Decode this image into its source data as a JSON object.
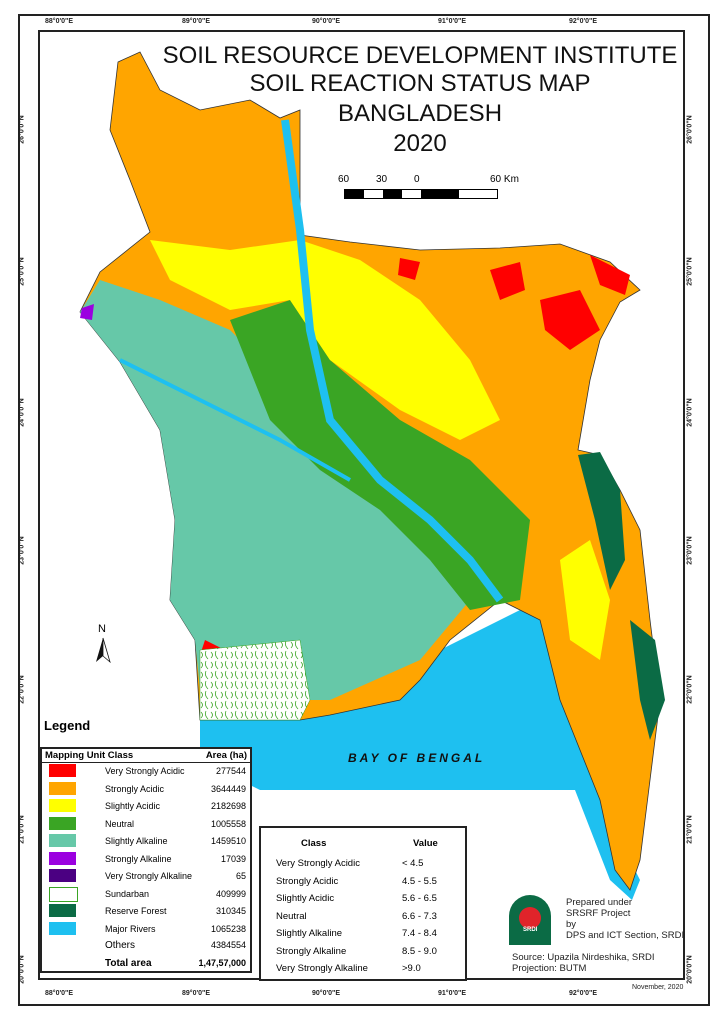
{
  "title": {
    "line1": "SOIL RESOURCE DEVELOPMENT INSTITUTE",
    "line2": "SOIL REACTION STATUS MAP",
    "line3": "BANGLADESH",
    "line4": "2020"
  },
  "scale_bar": {
    "labels": [
      "60",
      "30",
      "0",
      "60 Km"
    ]
  },
  "north_arrow": "N",
  "sea_label": "BAY OF BENGAL",
  "graticule": {
    "longitudes": [
      "88°0'0\"E",
      "89°0'0\"E",
      "90°0'0\"E",
      "91°0'0\"E",
      "92°0'0\"E"
    ],
    "latitudes": [
      "26°0'0\"N",
      "25°0'0\"N",
      "24°0'0\"N",
      "23°0'0\"N",
      "22°0'0\"N",
      "21°0'0\"N",
      "20°0'0\"N"
    ]
  },
  "legend": {
    "title": "Legend",
    "col_class": "Mapping Unit  Class",
    "col_area": "Area (ha)",
    "items": [
      {
        "name": "Very Strongly Acidic",
        "area": "277544",
        "color": "#ff0000"
      },
      {
        "name": "Strongly Acidic",
        "area": "3644449",
        "color": "#ffa500"
      },
      {
        "name": "Slightly Acidic",
        "area": "2182698",
        "color": "#ffff00"
      },
      {
        "name": "Neutral",
        "area": "1005558",
        "color": "#3aa524"
      },
      {
        "name": "Slightly Alkaline",
        "area": "1459510",
        "color": "#66c8a8"
      },
      {
        "name": "Strongly  Alkaline",
        "area": "17039",
        "color": "#9b00e0"
      },
      {
        "name": "Very Strongly  Alkaline",
        "area": "65",
        "color": "#4b0082"
      },
      {
        "name": "Sundarban",
        "area": "409999",
        "color": "#ffffff"
      },
      {
        "name": "Reserve Forest",
        "area": "310345",
        "color": "#0b6b45"
      },
      {
        "name": "Major Rivers",
        "area": "1065238",
        "color": "#1ec0f0"
      }
    ],
    "others_label": "Others",
    "others_area": "4384554",
    "total_label": "Total area",
    "total_area": "1,47,57,000"
  },
  "class_table": {
    "col_class": "Class",
    "col_value": "Value",
    "rows": [
      {
        "class": "Very Strongly Acidic",
        "value": "< 4.5"
      },
      {
        "class": "Strongly Acidic",
        "value": "4.5 - 5.5"
      },
      {
        "class": "Slightly Acidic",
        "value": "5.6 - 6.5"
      },
      {
        "class": "Neutral",
        "value": "6.6 - 7.3"
      },
      {
        "class": "Slightly Alkaline",
        "value": "7.4 - 8.4"
      },
      {
        "class": "Strongly  Alkaline",
        "value": "8.5 - 9.0"
      },
      {
        "class": "Very Strongly  Alkaline",
        "value": ">9.0"
      }
    ]
  },
  "credits": {
    "line1": "Prepared under",
    "line2": "SRSRF Project",
    "line3": "by",
    "line4": "DPS and ICT Section, SRDI",
    "source": "Source: Upazila Nirdeshika, SRDI",
    "projection": "Projection: BUTM",
    "date": "November, 2020",
    "logo_text": "SRDI"
  }
}
